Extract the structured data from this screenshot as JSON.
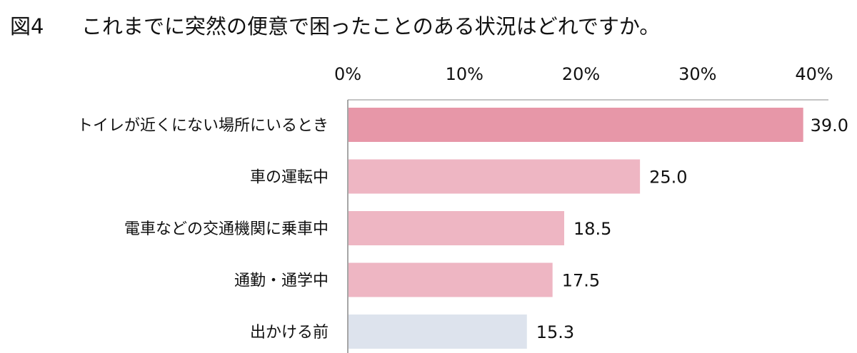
{
  "header": {
    "figure_label": "図4",
    "question": "これまでに突然の便意で困ったことのある状況はどれですか。"
  },
  "colors": {
    "highlight_bar": "#e797a8",
    "bar": "#eeb6c3",
    "last_bar": "#dde3ed",
    "axis": "#888888"
  },
  "chart_data": {
    "type": "bar",
    "orientation": "horizontal",
    "title": "これまでに突然の便意で困ったことのある状況はどれですか。",
    "xlabel": "",
    "ylabel": "",
    "xlim": [
      0,
      40
    ],
    "x_ticks": [
      "0%",
      "10%",
      "20%",
      "30%",
      "40%"
    ],
    "grid": false,
    "legend": "none",
    "categories": [
      "トイレが近くにない場所にいるとき",
      "車の運転中",
      "電車などの交通機関に乗車中",
      "通勤・通学中",
      "出かける前"
    ],
    "values": [
      39.0,
      25.0,
      18.5,
      17.5,
      15.3
    ],
    "value_labels": [
      "39.0",
      "25.0",
      "18.5",
      "17.5",
      "15.3"
    ]
  }
}
